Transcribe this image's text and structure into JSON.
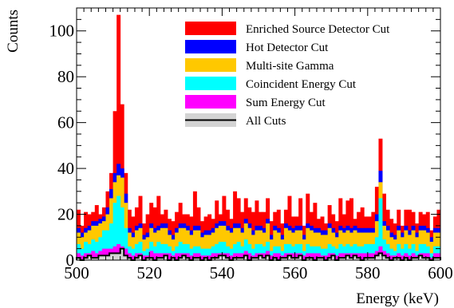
{
  "chart_data": {
    "type": "bar",
    "subtype": "stacked-histogram",
    "title": "",
    "xlabel": "Energy (keV)",
    "ylabel": "Counts",
    "xlim": [
      500,
      600
    ],
    "ylim": [
      0,
      110
    ],
    "bin_width_keV": 1,
    "x_ticks": [
      500,
      520,
      540,
      560,
      580,
      600
    ],
    "x_tick_labels": [
      "500",
      "520",
      "540",
      "560",
      "580",
      "600"
    ],
    "y_ticks": [
      0,
      20,
      40,
      60,
      80,
      100
    ],
    "y_tick_labels": [
      "0",
      "20",
      "40",
      "60",
      "80",
      "100"
    ],
    "legend_position": "top-right",
    "grid": false,
    "x": [
      500,
      501,
      502,
      503,
      504,
      505,
      506,
      507,
      508,
      509,
      510,
      511,
      512,
      513,
      514,
      515,
      516,
      517,
      518,
      519,
      520,
      521,
      522,
      523,
      524,
      525,
      526,
      527,
      528,
      529,
      530,
      531,
      532,
      533,
      534,
      535,
      536,
      537,
      538,
      539,
      540,
      541,
      542,
      543,
      544,
      545,
      546,
      547,
      548,
      549,
      550,
      551,
      552,
      553,
      554,
      555,
      556,
      557,
      558,
      559,
      560,
      561,
      562,
      563,
      564,
      565,
      566,
      567,
      568,
      569,
      570,
      571,
      572,
      573,
      574,
      575,
      576,
      577,
      578,
      579,
      580,
      581,
      582,
      583,
      584,
      585,
      586,
      587,
      588,
      589,
      590,
      591,
      592,
      593,
      594,
      595,
      596,
      597,
      598,
      599
    ],
    "series": [
      {
        "name": "Enriched Source Detector Cut",
        "color": "#ff0000",
        "values": [
          22,
          15,
          21,
          20,
          21,
          24,
          20,
          23,
          30,
          38,
          65,
          107,
          68,
          38,
          22,
          19,
          23,
          28,
          16,
          20,
          25,
          23,
          28,
          20,
          22,
          18,
          17,
          21,
          25,
          20,
          20,
          19,
          30,
          23,
          17,
          19,
          20,
          18,
          26,
          20,
          28,
          22,
          18,
          30,
          27,
          21,
          27,
          23,
          21,
          26,
          21,
          21,
          27,
          17,
          21,
          22,
          16,
          22,
          28,
          19,
          19,
          27,
          15,
          29,
          21,
          25,
          18,
          19,
          16,
          24,
          20,
          17,
          27,
          20,
          26,
          27,
          18,
          21,
          23,
          19,
          19,
          21,
          32,
          53,
          29,
          22,
          18,
          16,
          22,
          15,
          22,
          22,
          21,
          16,
          21,
          20,
          21,
          13,
          19,
          22
        ]
      },
      {
        "name": "Hot Detector Cut",
        "color": "#0000ff",
        "values": [
          14,
          12,
          14,
          15,
          17,
          17,
          18,
          19,
          23,
          31,
          38,
          42,
          40,
          29,
          14,
          12,
          15,
          16,
          11,
          12,
          16,
          14,
          15,
          16,
          16,
          13,
          11,
          14,
          16,
          16,
          15,
          13,
          15,
          15,
          12,
          13,
          13,
          14,
          16,
          17,
          17,
          15,
          14,
          16,
          16,
          14,
          18,
          16,
          13,
          15,
          15,
          14,
          18,
          11,
          15,
          14,
          11,
          16,
          15,
          14,
          15,
          15,
          11,
          16,
          15,
          14,
          14,
          13,
          13,
          16,
          14,
          12,
          15,
          14,
          15,
          14,
          15,
          14,
          14,
          14,
          14,
          14,
          20,
          39,
          17,
          15,
          12,
          11,
          15,
          12,
          15,
          13,
          15,
          12,
          15,
          15,
          14,
          10,
          14,
          14
        ]
      },
      {
        "name": "Multi-site Gamma",
        "color": "#ffc800",
        "values": [
          12,
          10,
          12,
          13,
          15,
          15,
          16,
          17,
          20,
          27,
          34,
          37,
          36,
          25,
          12,
          10,
          13,
          14,
          9,
          10,
          14,
          12,
          13,
          14,
          14,
          11,
          9,
          12,
          14,
          14,
          13,
          11,
          13,
          13,
          10,
          11,
          11,
          12,
          14,
          15,
          15,
          13,
          12,
          14,
          14,
          12,
          16,
          14,
          11,
          13,
          13,
          12,
          16,
          9,
          13,
          12,
          9,
          14,
          13,
          12,
          13,
          13,
          9,
          14,
          13,
          12,
          12,
          11,
          11,
          14,
          12,
          10,
          13,
          12,
          13,
          12,
          13,
          12,
          12,
          12,
          12,
          12,
          17,
          34,
          15,
          13,
          10,
          9,
          13,
          10,
          13,
          11,
          13,
          10,
          13,
          13,
          12,
          8,
          12,
          12
        ]
      },
      {
        "name": "Coincident Energy Cut",
        "color": "#00ffff",
        "values": [
          7,
          5,
          8,
          7,
          9,
          8,
          10,
          13,
          13,
          16,
          25,
          28,
          23,
          14,
          6,
          5,
          7,
          8,
          4,
          5,
          8,
          6,
          8,
          7,
          7,
          6,
          4,
          6,
          8,
          7,
          7,
          5,
          6,
          6,
          5,
          5,
          5,
          6,
          7,
          8,
          8,
          6,
          5,
          7,
          8,
          6,
          9,
          7,
          5,
          7,
          7,
          6,
          8,
          4,
          6,
          6,
          4,
          7,
          7,
          6,
          7,
          7,
          4,
          7,
          6,
          6,
          6,
          5,
          5,
          7,
          6,
          5,
          7,
          6,
          7,
          6,
          7,
          6,
          6,
          7,
          7,
          7,
          10,
          27,
          9,
          7,
          5,
          4,
          7,
          5,
          7,
          5,
          7,
          4,
          7,
          7,
          6,
          3,
          6,
          6
        ]
      },
      {
        "name": "Sum Energy Cut",
        "color": "#ff00ff",
        "values": [
          3,
          2,
          3,
          3,
          4,
          3,
          4,
          5,
          5,
          5,
          6,
          7,
          6,
          5,
          3,
          2,
          3,
          3,
          2,
          2,
          4,
          3,
          3,
          3,
          3,
          3,
          2,
          3,
          3,
          3,
          3,
          2,
          3,
          3,
          2,
          2,
          2,
          3,
          3,
          3,
          3,
          3,
          2,
          3,
          3,
          3,
          4,
          3,
          2,
          3,
          3,
          3,
          4,
          2,
          3,
          3,
          2,
          3,
          3,
          3,
          3,
          3,
          2,
          3,
          3,
          3,
          3,
          2,
          2,
          3,
          3,
          2,
          3,
          3,
          3,
          3,
          3,
          3,
          3,
          3,
          3,
          3,
          4,
          6,
          4,
          3,
          2,
          2,
          3,
          2,
          3,
          2,
          3,
          2,
          3,
          3,
          3,
          1,
          3,
          3
        ]
      },
      {
        "name": "All Cuts",
        "color": "#d3d3d3",
        "line_color": "#000000",
        "values": [
          1,
          0,
          1,
          2,
          1,
          1,
          2,
          2,
          2,
          3,
          3,
          3,
          5,
          2,
          1,
          0,
          1,
          2,
          0,
          1,
          1,
          0,
          1,
          1,
          2,
          0,
          1,
          0,
          1,
          2,
          1,
          0,
          1,
          1,
          0,
          1,
          0,
          1,
          1,
          2,
          2,
          1,
          0,
          1,
          1,
          1,
          2,
          0,
          1,
          1,
          2,
          1,
          2,
          0,
          1,
          0,
          1,
          1,
          2,
          1,
          1,
          2,
          0,
          1,
          1,
          0,
          1,
          1,
          0,
          1,
          2,
          0,
          1,
          1,
          2,
          1,
          2,
          1,
          0,
          1,
          1,
          1,
          2,
          3,
          2,
          1,
          0,
          1,
          1,
          0,
          1,
          0,
          1,
          1,
          2,
          1,
          1,
          0,
          1,
          1
        ]
      }
    ]
  }
}
